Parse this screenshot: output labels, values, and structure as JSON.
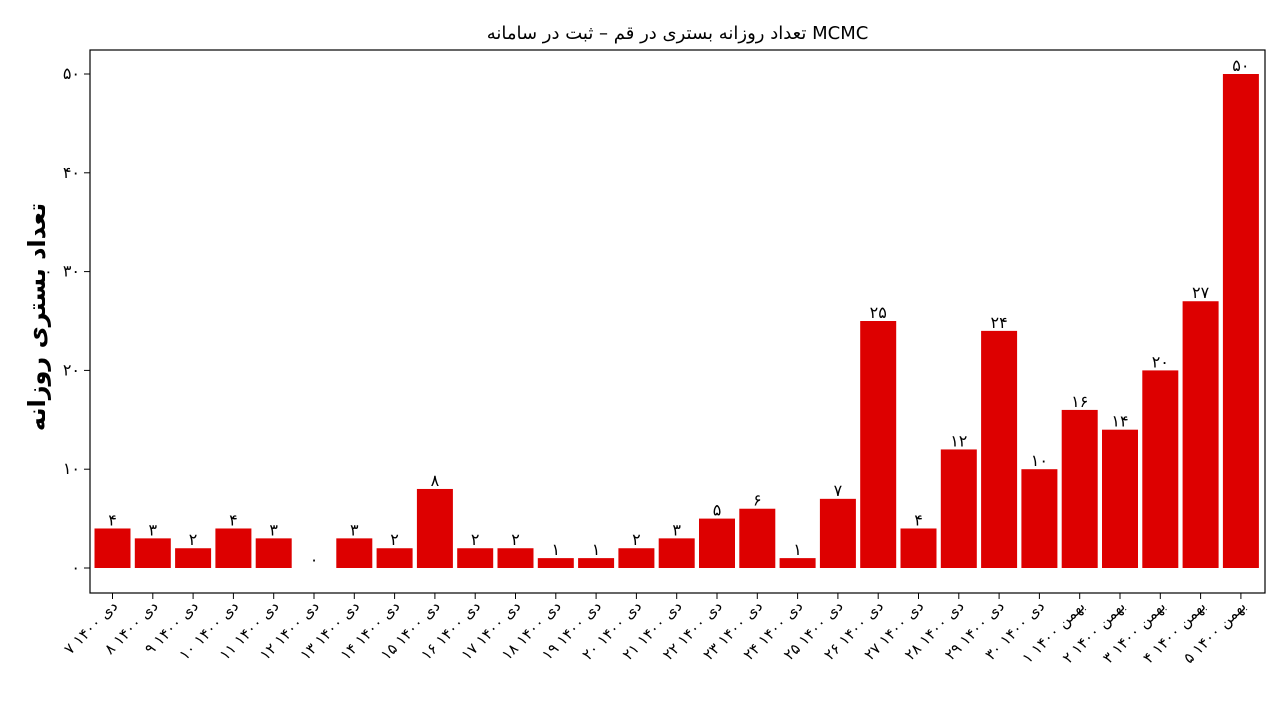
{
  "chart_data": {
    "type": "bar",
    "title": "تعداد روزانه بستری در قم – ثبت در سامانه MCMC",
    "xlabel": "",
    "ylabel": "تعداد بستری روزانه",
    "ylim": [
      0,
      52
    ],
    "y_ticks": [
      0,
      10,
      20,
      30,
      40,
      50
    ],
    "y_tick_labels": [
      "۰",
      "۱۰",
      "۲۰",
      "۳۰",
      "۴۰",
      "۵۰"
    ],
    "grid": false,
    "bar_color": "#dd0000",
    "categories": [
      "۷ دی ۱۴۰۰",
      "۸ دی ۱۴۰۰",
      "۹ دی ۱۴۰۰",
      "۱۰ دی ۱۴۰۰",
      "۱۱ دی ۱۴۰۰",
      "۱۲ دی ۱۴۰۰",
      "۱۳ دی ۱۴۰۰",
      "۱۴ دی ۱۴۰۰",
      "۱۵ دی ۱۴۰۰",
      "۱۶ دی ۱۴۰۰",
      "۱۷ دی ۱۴۰۰",
      "۱۸ دی ۱۴۰۰",
      "۱۹ دی ۱۴۰۰",
      "۲۰ دی ۱۴۰۰",
      "۲۱ دی ۱۴۰۰",
      "۲۲ دی ۱۴۰۰",
      "۲۳ دی ۱۴۰۰",
      "۲۴ دی ۱۴۰۰",
      "۲۵ دی ۱۴۰۰",
      "۲۶ دی ۱۴۰۰",
      "۲۷ دی ۱۴۰۰",
      "۲۸ دی ۱۴۰۰",
      "۲۹ دی ۱۴۰۰",
      "۳۰ دی ۱۴۰۰",
      "۱ بهمن ۱۴۰۰",
      "۲ بهمن ۱۴۰۰",
      "۳ بهمن ۱۴۰۰",
      "۴ بهمن ۱۴۰۰",
      "۵ بهمن ۱۴۰۰"
    ],
    "values": [
      4,
      3,
      2,
      4,
      3,
      0,
      3,
      2,
      8,
      2,
      2,
      1,
      1,
      2,
      3,
      5,
      6,
      1,
      7,
      25,
      4,
      12,
      24,
      10,
      16,
      14,
      20,
      27,
      50
    ],
    "value_labels": [
      "۴",
      "۳",
      "۲",
      "۴",
      "۳",
      "۰",
      "۳",
      "۲",
      "۸",
      "۲",
      "۲",
      "۱",
      "۱",
      "۲",
      "۳",
      "۵",
      "۶",
      "۱",
      "۷",
      "۲۵",
      "۴",
      "۱۲",
      "۲۴",
      "۱۰",
      "۱۶",
      "۱۴",
      "۲۰",
      "۲۷",
      "۵۰"
    ]
  }
}
